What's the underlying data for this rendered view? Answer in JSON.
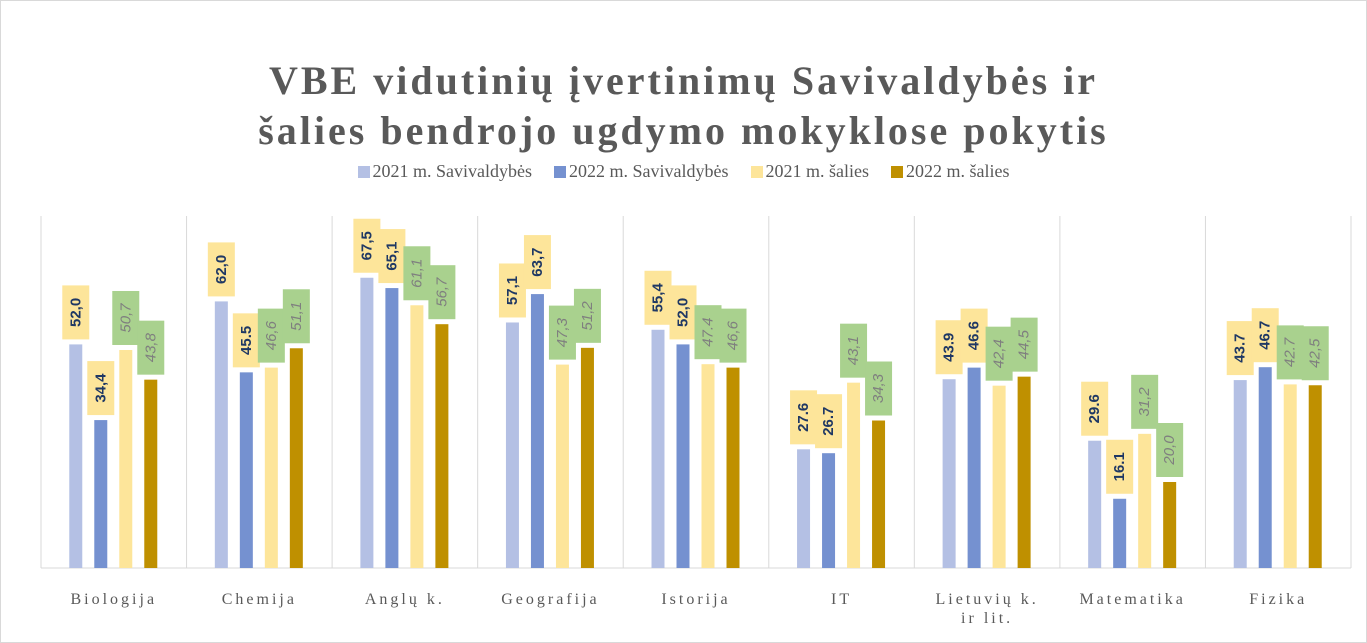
{
  "chart_data": {
    "type": "bar",
    "title": "VBE vidutinių įvertinimų  Savivaldybės ir šalies bendrojo ugdymo mokyklose pokytis",
    "categories": [
      "Biologija",
      "Chemija",
      "Anglų k.",
      "Geografija",
      "Istorija",
      "IT",
      "Lietuvių k. ir lit.",
      "Matematika",
      "Fizika"
    ],
    "series": [
      {
        "name": "2021 m. Savivaldybės",
        "color": "#b4c0e4",
        "values": [
          52.0,
          62.0,
          67.5,
          57.1,
          55.4,
          27.6,
          43.9,
          29.6,
          43.7
        ],
        "value_labels": [
          "52,0",
          "62,0",
          "67,5",
          "57,1",
          "55,4",
          "27.6",
          "43.9",
          "29.6",
          "43.7"
        ]
      },
      {
        "name": "2022 m. Savivaldybės",
        "color": "#7591d0",
        "values": [
          34.4,
          45.5,
          65.1,
          63.7,
          52.0,
          26.7,
          46.6,
          16.1,
          46.7
        ],
        "value_labels": [
          "34,4",
          "45.5",
          "65,1",
          "63,7",
          "52,0",
          "26.7",
          "46.6",
          "16.1",
          "46.7"
        ]
      },
      {
        "name": "2021 m. šalies",
        "color": "#fde59a",
        "values": [
          50.7,
          46.6,
          61.1,
          47.3,
          47.4,
          43.1,
          42.4,
          31.2,
          42.7
        ],
        "value_labels": [
          "50,7",
          "46,6",
          "61,1",
          "47,3",
          "47.4",
          "43,1",
          "42,4",
          "31,2",
          "42.7"
        ]
      },
      {
        "name": "2022 m. šalies",
        "color": "#bf9000",
        "values": [
          43.8,
          51.1,
          56.7,
          51.2,
          46.6,
          34.3,
          44.5,
          20.0,
          42.5
        ],
        "value_labels": [
          "43,8",
          "51,1",
          "56,7",
          "51,2",
          "46,6",
          "34,3",
          "44,5",
          "20,0",
          "42,5"
        ]
      }
    ],
    "ylim": [
      0,
      80
    ]
  }
}
